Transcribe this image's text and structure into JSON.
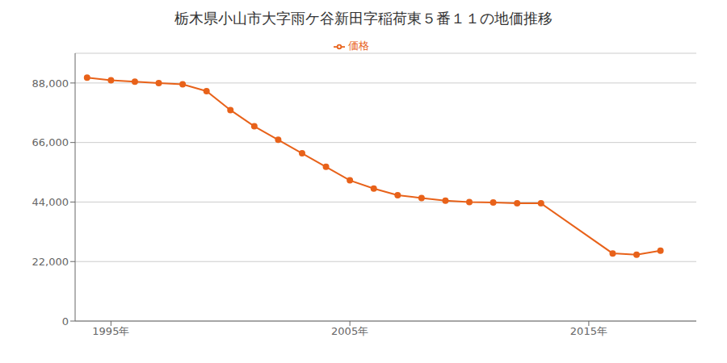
{
  "chart_data": {
    "type": "line",
    "title": "栃木県小山市大字雨ケ谷新田字稲荷東５番１１の地価推移",
    "x": [
      1994,
      1995,
      1996,
      1997,
      1998,
      1999,
      2000,
      2001,
      2002,
      2003,
      2004,
      2005,
      2006,
      2007,
      2008,
      2009,
      2010,
      2011,
      2012,
      2013,
      2016,
      2017,
      2018
    ],
    "series": [
      {
        "name": "価格",
        "color": "#e8621a",
        "marker": "circle",
        "values": [
          90000,
          89000,
          88500,
          88000,
          87500,
          85000,
          78000,
          72000,
          67000,
          62000,
          57000,
          52000,
          49000,
          46500,
          45500,
          44500,
          44000,
          43800,
          43500,
          43500,
          25000,
          24500,
          26000
        ]
      }
    ],
    "xlim": [
      1993.5,
      2019.5
    ],
    "xticks": [
      {
        "value": 1995,
        "label": "1995年"
      },
      {
        "value": 2005,
        "label": "2005年"
      },
      {
        "value": 2015,
        "label": "2015年"
      }
    ],
    "ylim": [
      0,
      99000
    ],
    "yticks": [
      0,
      {
        "value": 22000,
        "label": "22,000"
      },
      {
        "value": 44000,
        "label": "44,000"
      },
      {
        "value": 66000,
        "label": "66,000"
      },
      {
        "value": 88000,
        "label": "88,000"
      }
    ],
    "grid": true,
    "legend": "top"
  }
}
